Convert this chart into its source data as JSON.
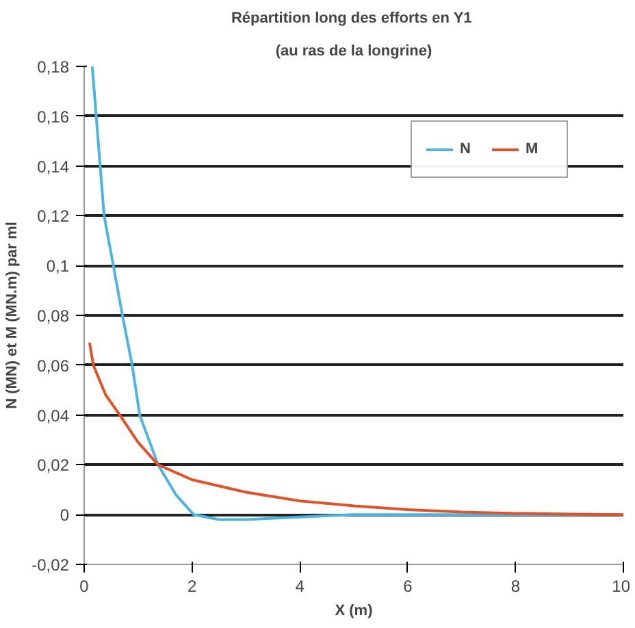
{
  "chart_data": {
    "type": "line",
    "title": "Répartition long des efforts  en Y1",
    "subtitle": "(au ras de la longrine)",
    "xlabel": "X (m)",
    "ylabel": "N (MN) et M (MN.m) par ml",
    "xlim": [
      0,
      10
    ],
    "xticks": [
      0,
      2,
      4,
      6,
      8,
      10
    ],
    "ylim": [
      -0.02,
      0.18
    ],
    "yticks": [
      {
        "value": -0.02,
        "label": "-0,02"
      },
      {
        "value": 0,
        "label": "0"
      },
      {
        "value": 0.02,
        "label": "0,02"
      },
      {
        "value": 0.04,
        "label": "0,04"
      },
      {
        "value": 0.06,
        "label": "0,06"
      },
      {
        "value": 0.08,
        "label": "0,08"
      },
      {
        "value": 0.1,
        "label": "0,1"
      },
      {
        "value": 0.12,
        "label": "0,12"
      },
      {
        "value": 0.14,
        "label": "0,14"
      },
      {
        "value": 0.16,
        "label": "0,16"
      },
      {
        "value": 0.18,
        "label": "0,18"
      }
    ],
    "grid": "y",
    "legend": "top right",
    "marker": "none",
    "line_style": "solid",
    "series": [
      {
        "name": "N",
        "color": "#4fb3e0",
        "x": [
          0.15,
          0.37,
          0.54,
          0.71,
          0.89,
          1.03,
          1.37,
          1.7,
          2.03,
          2.5,
          3,
          4,
          5,
          6,
          8,
          10
        ],
        "values": [
          0.18,
          0.12,
          0.1,
          0.08,
          0.06,
          0.04,
          0.02,
          0.008,
          0,
          -0.002,
          -0.002,
          -0.001,
          0,
          0,
          0,
          0
        ]
      },
      {
        "name": "M",
        "color": "#e0532a",
        "x": [
          0.1,
          0.17,
          0.4,
          0.66,
          1,
          1.37,
          2,
          3,
          4,
          5,
          6,
          7,
          8,
          9,
          10
        ],
        "values": [
          0.069,
          0.06,
          0.048,
          0.04,
          0.029,
          0.02,
          0.014,
          0.009,
          0.0055,
          0.0035,
          0.002,
          0.001,
          0.0005,
          0.0002,
          0
        ]
      }
    ]
  }
}
